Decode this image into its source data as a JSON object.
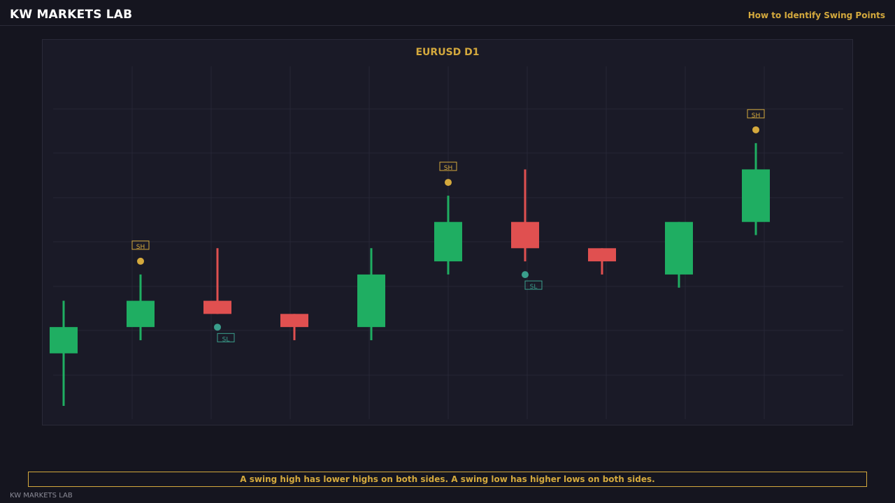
{
  "header": {
    "brand": "KW MARKETS LAB",
    "subtitle": "How to Identify Swing Points"
  },
  "footer": {
    "caption": "A swing high has lower highs on both sides. A swing low has higher lows on both sides.",
    "brand": "KW MARKETS LAB"
  },
  "colors": {
    "bull": "#1fae62",
    "bear": "#e05050",
    "swing_high": "#d4a93d",
    "swing_low": "#3a9e8c",
    "grid": "#262636",
    "title": "#d4a93d"
  },
  "chart_data": {
    "type": "candlestick",
    "title": "EURUSD  D1",
    "ylim": [
      0.0,
      13.0
    ],
    "grid": true,
    "candles": [
      {
        "open": 2.0,
        "high": 4.0,
        "low": 0.0,
        "close": 3.0
      },
      {
        "open": 3.0,
        "high": 5.0,
        "low": 2.5,
        "close": 4.0
      },
      {
        "open": 4.0,
        "high": 6.0,
        "low": 3.5,
        "close": 3.5
      },
      {
        "open": 3.5,
        "high": 3.5,
        "low": 2.5,
        "close": 3.0
      },
      {
        "open": 3.0,
        "high": 6.0,
        "low": 2.5,
        "close": 5.0
      },
      {
        "open": 5.5,
        "high": 8.0,
        "low": 5.0,
        "close": 7.0
      },
      {
        "open": 7.0,
        "high": 9.0,
        "low": 5.5,
        "close": 6.0
      },
      {
        "open": 6.0,
        "high": 6.0,
        "low": 5.0,
        "close": 5.5
      },
      {
        "open": 5.0,
        "high": 7.0,
        "low": 4.5,
        "close": 7.0
      },
      {
        "open": 7.0,
        "high": 10.0,
        "low": 6.5,
        "close": 9.0
      }
    ],
    "swing_points": [
      {
        "index": 1,
        "type": "high",
        "label": "SH",
        "value": 5.0
      },
      {
        "index": 2,
        "type": "low",
        "label": "SL",
        "value": 3.5
      },
      {
        "index": 5,
        "type": "high",
        "label": "SH",
        "value": 8.0
      },
      {
        "index": 6,
        "type": "low",
        "label": "SL",
        "value": 5.5
      },
      {
        "index": 9,
        "type": "high",
        "label": "SH",
        "value": 10.0
      }
    ]
  }
}
